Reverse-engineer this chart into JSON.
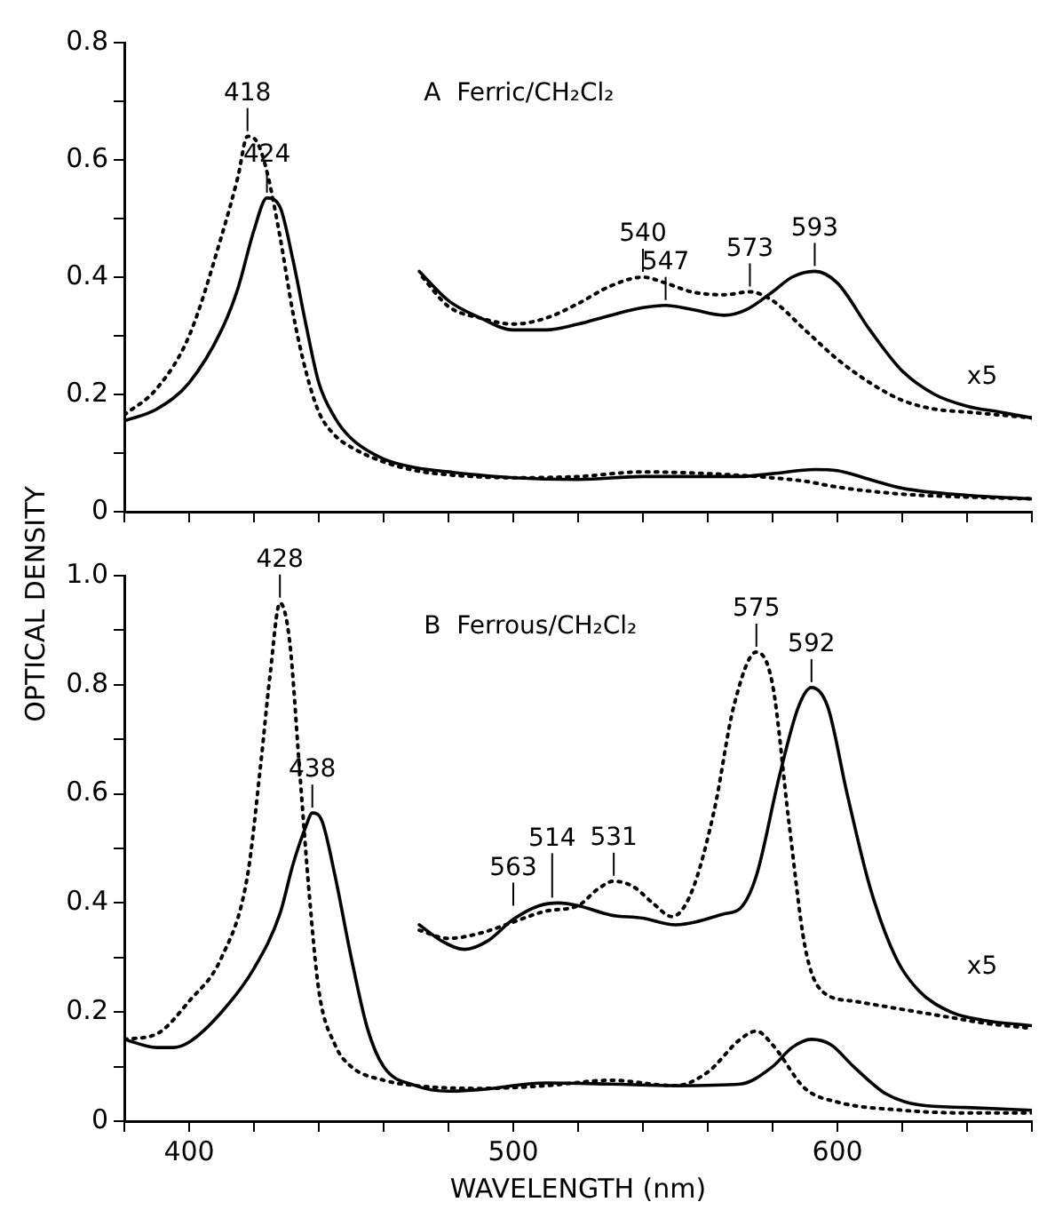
{
  "chart_data": [
    {
      "type": "line",
      "title": "A  Ferric/CH₂Cl₂",
      "xlim": [
        380,
        660
      ],
      "ylim": [
        0,
        0.8
      ],
      "xticks": [
        {
          "value": 380,
          "label": null
        },
        {
          "value": 400,
          "label": null
        },
        {
          "value": 420,
          "label": null
        },
        {
          "value": 440,
          "label": null
        },
        {
          "value": 460,
          "label": null
        },
        {
          "value": 480,
          "label": null
        },
        {
          "value": 500,
          "label": null
        },
        {
          "value": 520,
          "label": null
        },
        {
          "value": 540,
          "label": null
        },
        {
          "value": 560,
          "label": null
        },
        {
          "value": 580,
          "label": null
        },
        {
          "value": 600,
          "label": null
        },
        {
          "value": 620,
          "label": null
        },
        {
          "value": 640,
          "label": null
        },
        {
          "value": 660,
          "label": null
        }
      ],
      "yticks": [
        {
          "value": 0,
          "label": "0"
        },
        {
          "value": 0.1,
          "label": null
        },
        0.2,
        {
          "value": 0.3,
          "label": null
        },
        0.4,
        {
          "value": 0.5,
          "label": null
        },
        0.6,
        {
          "value": 0.7,
          "label": null
        },
        0.8
      ],
      "tick_labels": "y",
      "grid": false,
      "legend": false,
      "marker": "none",
      "series": [
        {
          "color": "#000000",
          "line_style": "solid",
          "x": [
            380,
            390,
            400,
            410,
            415,
            420,
            424,
            428,
            432,
            436,
            440,
            445,
            450,
            460,
            470,
            480,
            500,
            520,
            540,
            560,
            570,
            580,
            593,
            600,
            610,
            620,
            640,
            660
          ],
          "values": [
            0.155,
            0.175,
            0.22,
            0.31,
            0.38,
            0.48,
            0.535,
            0.52,
            0.43,
            0.32,
            0.22,
            0.16,
            0.125,
            0.09,
            0.075,
            0.068,
            0.058,
            0.055,
            0.06,
            0.06,
            0.06,
            0.065,
            0.072,
            0.07,
            0.055,
            0.04,
            0.028,
            0.022
          ]
        },
        {
          "color": "#000000",
          "line_style": "dotted",
          "x": [
            380,
            390,
            400,
            410,
            415,
            418,
            421,
            424,
            428,
            432,
            436,
            440,
            445,
            450,
            460,
            470,
            480,
            500,
            520,
            540,
            560,
            575,
            590,
            600,
            620,
            640,
            660
          ],
          "values": [
            0.165,
            0.21,
            0.3,
            0.47,
            0.57,
            0.64,
            0.63,
            0.58,
            0.47,
            0.34,
            0.24,
            0.17,
            0.13,
            0.11,
            0.085,
            0.07,
            0.063,
            0.058,
            0.06,
            0.068,
            0.065,
            0.06,
            0.052,
            0.042,
            0.03,
            0.025,
            0.022
          ]
        },
        {
          "color": "#000000",
          "line_style": "solid",
          "x": [
            471,
            480,
            490,
            500,
            510,
            520,
            530,
            540,
            547,
            555,
            565,
            572,
            580,
            586,
            593,
            600,
            610,
            620,
            630,
            640,
            650,
            660
          ],
          "values": [
            0.41,
            0.36,
            0.33,
            0.31,
            0.31,
            0.32,
            0.335,
            0.348,
            0.352,
            0.345,
            0.335,
            0.345,
            0.375,
            0.4,
            0.41,
            0.39,
            0.31,
            0.24,
            0.2,
            0.18,
            0.17,
            0.16
          ]
        },
        {
          "color": "#000000",
          "line_style": "dotted",
          "x": [
            472,
            480,
            490,
            500,
            510,
            520,
            530,
            540,
            547,
            555,
            565,
            573,
            580,
            590,
            600,
            610,
            620,
            630,
            640,
            650,
            660
          ],
          "values": [
            0.4,
            0.35,
            0.33,
            0.32,
            0.33,
            0.355,
            0.385,
            0.4,
            0.39,
            0.375,
            0.37,
            0.375,
            0.36,
            0.31,
            0.26,
            0.22,
            0.19,
            0.175,
            0.17,
            0.165,
            0.16
          ]
        }
      ],
      "annotations": [
        {
          "text": "418",
          "x": 418,
          "y": 0.64
        },
        {
          "text": "424",
          "x": 424,
          "y": 0.535
        },
        {
          "text": "540",
          "x": 540,
          "y": 0.4
        },
        {
          "text": "547",
          "x": 547,
          "y": 0.352
        },
        {
          "text": "573",
          "x": 573,
          "y": 0.375
        },
        {
          "text": "593",
          "x": 593,
          "y": 0.41
        },
        "x5"
      ]
    },
    {
      "type": "line",
      "title": "B  Ferrous/CH₂Cl₂",
      "xlabel": "WAVELENGTH (nm)",
      "ylabel": "OPTICAL DENSITY",
      "xlim": [
        380,
        660
      ],
      "ylim": [
        0,
        1.0
      ],
      "xticks": [
        {
          "value": 380,
          "label": null
        },
        400,
        {
          "value": 420,
          "label": null
        },
        {
          "value": 440,
          "label": null
        },
        {
          "value": 460,
          "label": null
        },
        {
          "value": 480,
          "label": null
        },
        500,
        {
          "value": 520,
          "label": null
        },
        {
          "value": 540,
          "label": null
        },
        {
          "value": 560,
          "label": null
        },
        {
          "value": 580,
          "label": null
        },
        600,
        {
          "value": 620,
          "label": null
        },
        {
          "value": 640,
          "label": null
        },
        {
          "value": 660,
          "label": null
        }
      ],
      "yticks": [
        {
          "value": 0,
          "label": "0"
        },
        {
          "value": 0.1,
          "label": null
        },
        0.2,
        {
          "value": 0.3,
          "label": null
        },
        0.4,
        {
          "value": 0.5,
          "label": null
        },
        0.6,
        {
          "value": 0.7,
          "label": null
        },
        0.8,
        {
          "value": 0.9,
          "label": null
        },
        {
          "value": 1,
          "label": "1.0"
        }
      ],
      "grid": false,
      "legend": false,
      "marker": "none",
      "series": [
        {
          "color": "#000000",
          "line_style": "solid",
          "x": [
            380,
            390,
            395,
            400,
            410,
            420,
            428,
            432,
            436,
            438,
            441,
            445,
            450,
            455,
            460,
            470,
            480,
            490,
            510,
            530,
            550,
            570,
            580,
            586,
            592,
            598,
            605,
            615,
            625,
            640,
            660
          ],
          "values": [
            0.15,
            0.135,
            0.135,
            0.145,
            0.2,
            0.28,
            0.38,
            0.47,
            0.54,
            0.565,
            0.55,
            0.45,
            0.3,
            0.17,
            0.1,
            0.065,
            0.055,
            0.058,
            0.07,
            0.068,
            0.065,
            0.068,
            0.1,
            0.135,
            0.15,
            0.14,
            0.1,
            0.05,
            0.03,
            0.025,
            0.02
          ]
        },
        {
          "color": "#000000",
          "line_style": "dotted",
          "x": [
            380,
            390,
            400,
            410,
            418,
            422,
            425,
            428,
            431,
            434,
            437,
            440,
            445,
            450,
            460,
            470,
            490,
            510,
            530,
            550,
            560,
            570,
            575,
            580,
            590,
            600,
            620,
            640,
            660
          ],
          "values": [
            0.15,
            0.16,
            0.22,
            0.3,
            0.45,
            0.65,
            0.82,
            0.95,
            0.88,
            0.65,
            0.42,
            0.24,
            0.14,
            0.1,
            0.075,
            0.065,
            0.06,
            0.065,
            0.075,
            0.065,
            0.09,
            0.15,
            0.165,
            0.14,
            0.06,
            0.035,
            0.02,
            0.015,
            0.015
          ]
        },
        {
          "color": "#000000",
          "line_style": "solid",
          "x": [
            471,
            478,
            485,
            492,
            500,
            508,
            514,
            520,
            530,
            540,
            550,
            556,
            565,
            570,
            575,
            582,
            588,
            592,
            597,
            603,
            610,
            618,
            625,
            635,
            645,
            660
          ],
          "values": [
            0.36,
            0.33,
            0.315,
            0.33,
            0.37,
            0.395,
            0.4,
            0.395,
            0.378,
            0.372,
            0.36,
            0.365,
            0.38,
            0.39,
            0.45,
            0.63,
            0.76,
            0.795,
            0.76,
            0.6,
            0.43,
            0.3,
            0.24,
            0.2,
            0.185,
            0.175
          ]
        },
        {
          "color": "#000000",
          "line_style": "dotted",
          "x": [
            471,
            480,
            490,
            500,
            510,
            520,
            526,
            531,
            537,
            543,
            549,
            555,
            562,
            568,
            575,
            580,
            585,
            590,
            595,
            605,
            615,
            625,
            635,
            645,
            660
          ],
          "values": [
            0.35,
            0.335,
            0.345,
            0.365,
            0.385,
            0.395,
            0.425,
            0.44,
            0.43,
            0.4,
            0.375,
            0.42,
            0.57,
            0.76,
            0.86,
            0.8,
            0.55,
            0.32,
            0.24,
            0.22,
            0.21,
            0.2,
            0.19,
            0.18,
            0.17
          ]
        }
      ],
      "annotations": [
        {
          "text": "428",
          "x": 428,
          "y": 0.95
        },
        {
          "text": "438",
          "x": 438,
          "y": 0.565
        },
        {
          "text": "563",
          "x": 500,
          "y": 0.385
        },
        {
          "text": "514",
          "x": 512,
          "y": 0.4
        },
        {
          "text": "531",
          "x": 531,
          "y": 0.44
        },
        {
          "text": "575",
          "x": 575,
          "y": 0.86
        },
        {
          "text": "592",
          "x": 592,
          "y": 0.795
        },
        "x5"
      ]
    }
  ]
}
